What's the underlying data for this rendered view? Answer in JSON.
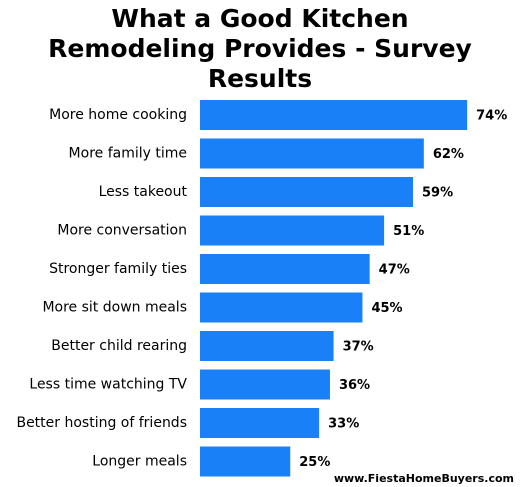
{
  "chart_data": {
    "type": "hbar",
    "title": "What a Good Kitchen Remodeling Provides - Survey Results",
    "categories": [
      "More home cooking",
      "More family time",
      "Less takeout",
      "More conversation",
      "Stronger family ties",
      "More sit down meals",
      "Better child rearing",
      "Less time watching TV",
      "Better hosting of friends",
      "Longer meals"
    ],
    "values": [
      74,
      62,
      59,
      51,
      47,
      45,
      37,
      36,
      33,
      25
    ],
    "value_labels": [
      "74%",
      "62%",
      "59%",
      "51%",
      "47%",
      "45%",
      "37%",
      "36%",
      "33%",
      "25%"
    ],
    "color": "#1a80f7",
    "source": "www.FiestaHomeBuyers.com"
  }
}
